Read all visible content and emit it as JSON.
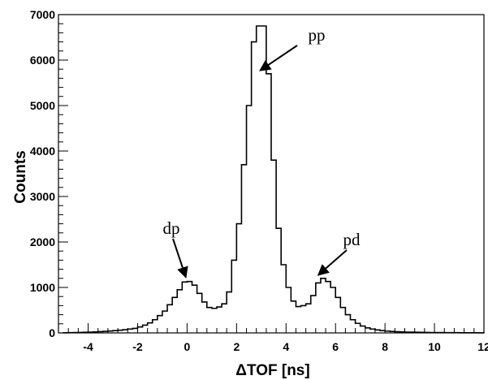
{
  "chart_data": {
    "type": "histogram",
    "title": "",
    "xlabel": "ΔTOF [ns]",
    "ylabel": "Counts",
    "xlim": [
      -5.2,
      12
    ],
    "ylim": [
      0,
      7000
    ],
    "grid": false,
    "legend": "none",
    "line_color": "#000000",
    "xticks": [
      -4,
      -2,
      0,
      2,
      4,
      6,
      8,
      10,
      12
    ],
    "yticks": [
      0,
      1000,
      2000,
      3000,
      4000,
      5000,
      6000,
      7000
    ],
    "series": [
      {
        "bin_edges": [
          -5.0,
          -4.8,
          -4.6,
          -4.4,
          -4.2,
          -4.0,
          -3.8,
          -3.6,
          -3.4,
          -3.2,
          -3.0,
          -2.8,
          -2.6,
          -2.4,
          -2.2,
          -2.0,
          -1.8,
          -1.6,
          -1.4,
          -1.2,
          -1.0,
          -0.8,
          -0.6,
          -0.4,
          -0.2,
          0.0,
          0.2,
          0.4,
          0.6,
          0.8,
          1.0,
          1.2,
          1.4,
          1.6,
          1.8,
          2.0,
          2.2,
          2.4,
          2.6,
          2.8,
          3.0,
          3.2,
          3.4,
          3.6,
          3.8,
          4.0,
          4.2,
          4.4,
          4.6,
          4.8,
          5.0,
          5.2,
          5.4,
          5.6,
          5.8,
          6.0,
          6.2,
          6.4,
          6.6,
          6.8,
          7.0,
          7.2,
          7.4,
          7.6,
          7.8,
          8.0,
          8.2,
          8.4,
          8.6,
          8.8,
          9.0,
          9.2,
          9.4,
          9.6,
          9.8,
          10.0,
          10.2,
          10.4,
          10.6,
          10.8,
          11.0,
          11.2,
          11.4,
          11.6,
          11.8,
          12.0
        ],
        "counts": [
          3,
          5,
          8,
          10,
          14,
          18,
          22,
          28,
          35,
          42,
          50,
          60,
          70,
          85,
          100,
          130,
          170,
          220,
          290,
          380,
          480,
          620,
          780,
          950,
          1120,
          1130,
          1050,
          870,
          680,
          560,
          540,
          570,
          640,
          900,
          1600,
          2400,
          3700,
          5000,
          6400,
          6750,
          6750,
          5700,
          3800,
          2300,
          1500,
          1000,
          700,
          580,
          600,
          640,
          820,
          1100,
          1200,
          1130,
          1000,
          780,
          560,
          400,
          290,
          210,
          150,
          110,
          85,
          65,
          50,
          40,
          32,
          26,
          22,
          18,
          16,
          14,
          12,
          10,
          9,
          8,
          7,
          6,
          5,
          5,
          4,
          4,
          3,
          3,
          2
        ]
      }
    ],
    "annotations": [
      {
        "text": "pp",
        "target_x": 2.95,
        "target_y": 5700
      },
      {
        "text": "dp",
        "target_x": -0.05,
        "target_y": 1150
      },
      {
        "text": "pd",
        "target_x": 5.3,
        "target_y": 1200
      }
    ]
  }
}
